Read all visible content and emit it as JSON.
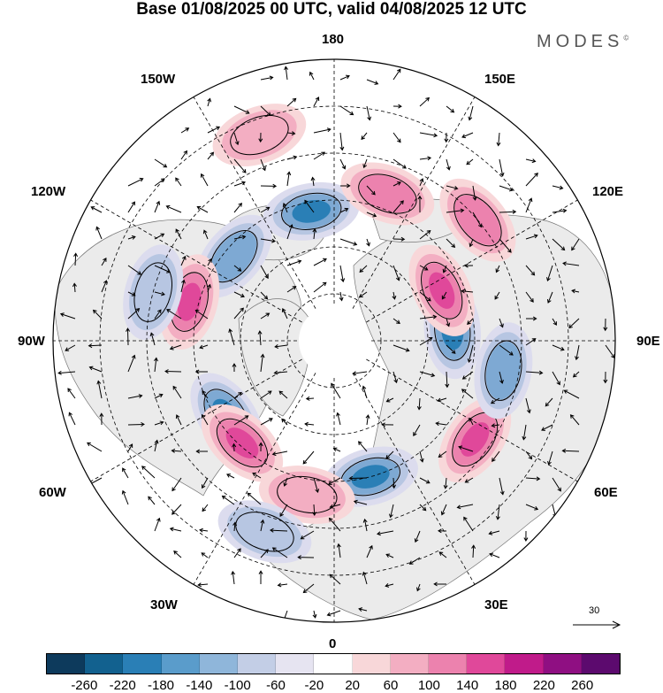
{
  "title": "Base 01/08/2025 00 UTC, valid 04/08/2025 12 UTC",
  "brand": "MODES",
  "brand_mark": "©",
  "longitude_labels": {
    "top": "180",
    "bottom": "0",
    "left": "90W",
    "right": "90E",
    "upper_left": "150W",
    "upper_right": "150E",
    "mid_upper_left": "120W",
    "mid_upper_right": "120E",
    "mid_lower_left": "60W",
    "mid_lower_right": "60E",
    "lower_left": "30W",
    "lower_right": "30E"
  },
  "vector_scale": "30",
  "colorbar": {
    "ticks": [
      "-260",
      "-220",
      "-180",
      "-140",
      "-100",
      "-60",
      "-20",
      "20",
      "60",
      "100",
      "140",
      "180",
      "220",
      "260"
    ],
    "colors": [
      "#0d3a5c",
      "#12618f",
      "#2a7fb6",
      "#5a9ccb",
      "#8fb6da",
      "#c3cee6",
      "#e6e4f1",
      "#ffffff",
      "#f8d7d9",
      "#f3aec2",
      "#ec82ae",
      "#e0489a",
      "#c01b8a",
      "#8f0f82",
      "#5c0a6e"
    ]
  },
  "anomalies": [
    {
      "sign": "pos",
      "strength": 0.8,
      "lon": 130,
      "lat": 30
    },
    {
      "sign": "neg",
      "strength": 1.0,
      "lon": -170,
      "lat": 48
    },
    {
      "sign": "neg",
      "strength": 0.8,
      "lon": -130,
      "lat": 48
    },
    {
      "sign": "pos",
      "strength": 1.0,
      "lon": -105,
      "lat": 42
    },
    {
      "sign": "neg",
      "strength": 0.9,
      "lon": -55,
      "lat": 48
    },
    {
      "sign": "pos",
      "strength": 1.0,
      "lon": -42,
      "lat": 46
    },
    {
      "sign": "neg",
      "strength": 1.0,
      "lon": 15,
      "lat": 45
    },
    {
      "sign": "pos",
      "strength": 1.0,
      "lon": 55,
      "lat": 35
    },
    {
      "sign": "neg",
      "strength": 1.0,
      "lon": 95,
      "lat": 52
    },
    {
      "sign": "neg",
      "strength": 0.7,
      "lon": 80,
      "lat": 35
    },
    {
      "sign": "pos",
      "strength": 1.0,
      "lon": 115,
      "lat": 52
    },
    {
      "sign": "pos",
      "strength": 0.7,
      "lon": 160,
      "lat": 40
    },
    {
      "sign": "neg",
      "strength": 0.6,
      "lon": -105,
      "lat": 30
    },
    {
      "sign": "pos",
      "strength": 0.5,
      "lon": -160,
      "lat": 20
    },
    {
      "sign": "pos",
      "strength": 0.5,
      "lon": -10,
      "lat": 40
    },
    {
      "sign": "neg",
      "strength": 0.5,
      "lon": -20,
      "lat": 25
    }
  ]
}
